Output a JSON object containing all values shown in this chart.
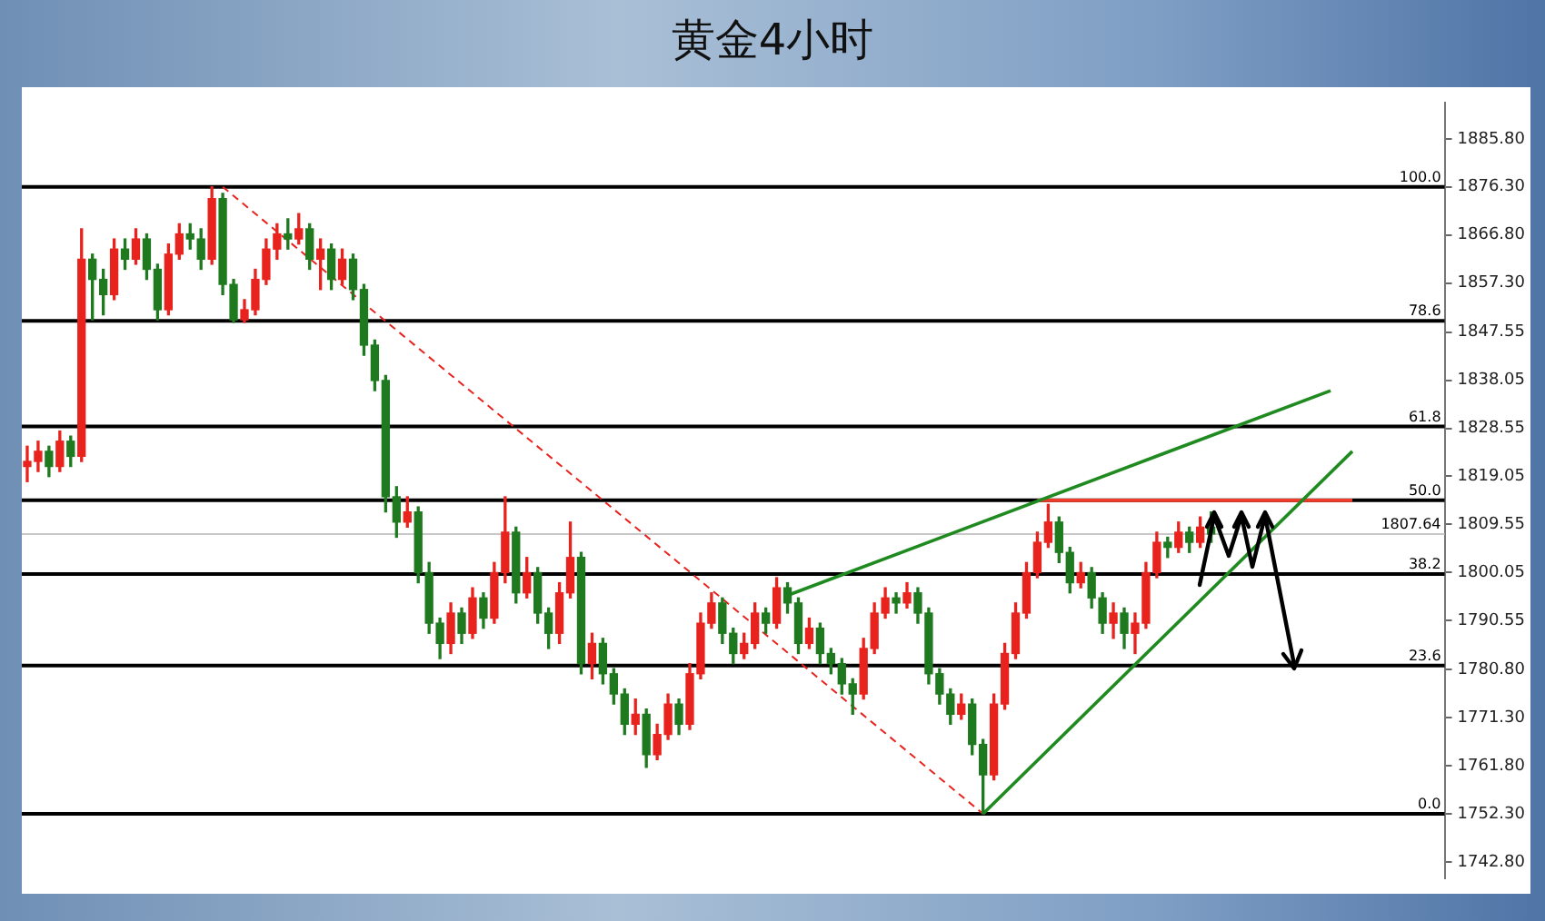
{
  "chart_data": {
    "type": "candlestick",
    "title": "黄金4小时",
    "categories": [
      null,
      null,
      null,
      null,
      null,
      null,
      null,
      null,
      null,
      null,
      null,
      null,
      null,
      null,
      null,
      null,
      null,
      null,
      null,
      null,
      null,
      null,
      null,
      null,
      null,
      null,
      null,
      null,
      null,
      null,
      null,
      null,
      null,
      null,
      null,
      null,
      null,
      null,
      null,
      null,
      null,
      null,
      null,
      null,
      null,
      null,
      null,
      null,
      null,
      null,
      null,
      null,
      null,
      null,
      null,
      null,
      null,
      null,
      null,
      null,
      null,
      null,
      null,
      null,
      null,
      null,
      null,
      null,
      null,
      null,
      null,
      null,
      null,
      null,
      null,
      null,
      null,
      null,
      null,
      null,
      null,
      null,
      null,
      null,
      null,
      null,
      null,
      null,
      null,
      null,
      null,
      null,
      null,
      null,
      null,
      null,
      null,
      null,
      null,
      null,
      null,
      null,
      null,
      null,
      null,
      null,
      null,
      null,
      null,
      null,
      null,
      null,
      null,
      null,
      null,
      null,
      null,
      null,
      null,
      null,
      null,
      null,
      null,
      null,
      null,
      null,
      null,
      null,
      null,
      null,
      null
    ],
    "ohlc": [
      [
        1821,
        1825,
        1818,
        1822
      ],
      [
        1822,
        1826,
        1820,
        1824
      ],
      [
        1824,
        1825,
        1819,
        1821
      ],
      [
        1821,
        1828,
        1820,
        1826
      ],
      [
        1826,
        1827,
        1821,
        1823
      ],
      [
        1823,
        1868,
        1822,
        1862
      ],
      [
        1862,
        1863,
        1850,
        1858
      ],
      [
        1858,
        1860,
        1851,
        1855
      ],
      [
        1855,
        1866,
        1854,
        1864
      ],
      [
        1864,
        1866,
        1860,
        1862
      ],
      [
        1862,
        1868,
        1861,
        1866
      ],
      [
        1866,
        1867,
        1858,
        1860
      ],
      [
        1860,
        1861,
        1850,
        1852
      ],
      [
        1852,
        1865,
        1851,
        1863
      ],
      [
        1863,
        1869,
        1862,
        1867
      ],
      [
        1867,
        1869,
        1864,
        1866
      ],
      [
        1866,
        1868,
        1860,
        1862
      ],
      [
        1862,
        1876.3,
        1861,
        1874
      ],
      [
        1874,
        1875,
        1855,
        1857
      ],
      [
        1857,
        1858,
        1849.5,
        1850
      ],
      [
        1850,
        1854,
        1849.5,
        1852
      ],
      [
        1852,
        1860,
        1851,
        1858
      ],
      [
        1858,
        1866,
        1857,
        1864
      ],
      [
        1864,
        1869,
        1862,
        1867
      ],
      [
        1867,
        1870,
        1864,
        1866
      ],
      [
        1866,
        1871,
        1865,
        1868
      ],
      [
        1868,
        1869,
        1860,
        1862
      ],
      [
        1862,
        1866,
        1856,
        1864
      ],
      [
        1864,
        1865,
        1856,
        1858
      ],
      [
        1858,
        1864,
        1857,
        1862
      ],
      [
        1862,
        1863,
        1854,
        1856
      ],
      [
        1856,
        1857,
        1843,
        1845
      ],
      [
        1845,
        1846,
        1836,
        1838
      ],
      [
        1838,
        1839,
        1812,
        1815
      ],
      [
        1815,
        1817,
        1807,
        1810
      ],
      [
        1810,
        1815,
        1809,
        1812
      ],
      [
        1812,
        1813,
        1798,
        1800
      ],
      [
        1800,
        1802,
        1788,
        1790
      ],
      [
        1790,
        1791,
        1783,
        1786
      ],
      [
        1786,
        1794,
        1784,
        1792
      ],
      [
        1792,
        1793,
        1786,
        1788
      ],
      [
        1788,
        1797,
        1787,
        1795
      ],
      [
        1795,
        1796,
        1789,
        1791
      ],
      [
        1791,
        1802,
        1790,
        1800
      ],
      [
        1800,
        1815,
        1798,
        1808
      ],
      [
        1808,
        1809,
        1794,
        1796
      ],
      [
        1796,
        1803,
        1795,
        1800
      ],
      [
        1800,
        1801,
        1790,
        1792
      ],
      [
        1792,
        1793,
        1785,
        1788
      ],
      [
        1788,
        1798,
        1786,
        1796
      ],
      [
        1796,
        1810,
        1795,
        1803
      ],
      [
        1803,
        1804,
        1780,
        1782
      ],
      [
        1782,
        1788,
        1779,
        1786
      ],
      [
        1786,
        1787,
        1778,
        1780
      ],
      [
        1780,
        1781,
        1774,
        1776
      ],
      [
        1776,
        1777,
        1768,
        1770
      ],
      [
        1770,
        1775,
        1768,
        1772
      ],
      [
        1772,
        1773,
        1761.5,
        1764
      ],
      [
        1764,
        1770,
        1763,
        1768
      ],
      [
        1768,
        1776,
        1767,
        1774
      ],
      [
        1774,
        1775,
        1768,
        1770
      ],
      [
        1770,
        1782,
        1769,
        1780
      ],
      [
        1780,
        1792,
        1779,
        1790
      ],
      [
        1790,
        1796,
        1789,
        1794
      ],
      [
        1794,
        1795,
        1786,
        1788
      ],
      [
        1788,
        1789,
        1782,
        1784
      ],
      [
        1784,
        1788,
        1783,
        1786
      ],
      [
        1786,
        1794,
        1785,
        1792
      ],
      [
        1792,
        1793,
        1788,
        1790
      ],
      [
        1790,
        1799,
        1789,
        1797
      ],
      [
        1797,
        1798,
        1792,
        1794
      ],
      [
        1794,
        1795,
        1784,
        1786
      ],
      [
        1786,
        1791,
        1785,
        1789
      ],
      [
        1789,
        1790,
        1782,
        1784
      ],
      [
        1784,
        1785,
        1780,
        1782
      ],
      [
        1782,
        1783,
        1776,
        1778
      ],
      [
        1778,
        1779,
        1772,
        1776
      ],
      [
        1776,
        1787,
        1775,
        1785
      ],
      [
        1785,
        1794,
        1784,
        1792
      ],
      [
        1792,
        1797,
        1791,
        1795
      ],
      [
        1795,
        1796,
        1792,
        1794
      ],
      [
        1794,
        1798,
        1793,
        1796
      ],
      [
        1796,
        1797,
        1790,
        1792
      ],
      [
        1792,
        1793,
        1778,
        1780
      ],
      [
        1780,
        1781,
        1774,
        1776
      ],
      [
        1776,
        1777,
        1770,
        1772
      ],
      [
        1772,
        1776,
        1771,
        1774
      ],
      [
        1774,
        1775,
        1764,
        1766
      ],
      [
        1766,
        1767,
        1752.3,
        1760
      ],
      [
        1760,
        1776,
        1759,
        1774
      ],
      [
        1774,
        1786,
        1773,
        1784
      ],
      [
        1784,
        1794,
        1783,
        1792
      ],
      [
        1792,
        1802,
        1791,
        1800
      ],
      [
        1800,
        1808,
        1799,
        1806
      ],
      [
        1806,
        1813.5,
        1805,
        1810
      ],
      [
        1810,
        1811,
        1802,
        1804
      ],
      [
        1804,
        1805,
        1796,
        1798
      ],
      [
        1798,
        1802,
        1797,
        1800
      ],
      [
        1800,
        1801,
        1793,
        1795
      ],
      [
        1795,
        1796,
        1788,
        1790
      ],
      [
        1790,
        1794,
        1787,
        1792
      ],
      [
        1792,
        1793,
        1785,
        1788
      ],
      [
        1788,
        1792,
        1784,
        1790
      ],
      [
        1790,
        1802,
        1789,
        1800
      ],
      [
        1800,
        1808,
        1799,
        1806
      ],
      [
        1806,
        1807,
        1803,
        1805
      ],
      [
        1805,
        1810,
        1804,
        1808
      ],
      [
        1808,
        1809,
        1804,
        1806
      ],
      [
        1806,
        1811,
        1805,
        1809
      ],
      [
        1809,
        1812,
        1806,
        1807.64
      ],
      null,
      null,
      null,
      null,
      null,
      null,
      null,
      null,
      null,
      null,
      null,
      null,
      null,
      null,
      null,
      null,
      null,
      null,
      null,
      null,
      null
    ],
    "colors": [
      "#e8231e",
      "#e8231e",
      "#1f7a1f",
      "#e8231e",
      "#1f7a1f",
      "#e8231e",
      "#1f7a1f",
      "#1f7a1f",
      "#e8231e",
      "#1f7a1f",
      "#e8231e",
      "#1f7a1f",
      "#1f7a1f",
      "#e8231e",
      "#e8231e",
      "#1f7a1f",
      "#1f7a1f",
      "#e8231e",
      "#1f7a1f",
      "#1f7a1f",
      "#e8231e",
      "#e8231e",
      "#e8231e",
      "#e8231e",
      "#1f7a1f",
      "#e8231e",
      "#1f7a1f",
      "#e8231e",
      "#1f7a1f",
      "#e8231e",
      "#1f7a1f",
      "#1f7a1f",
      "#1f7a1f",
      "#1f7a1f",
      "#1f7a1f",
      "#e8231e",
      "#1f7a1f",
      "#1f7a1f",
      "#1f7a1f",
      "#e8231e",
      "#1f7a1f",
      "#e8231e",
      "#1f7a1f",
      "#e8231e",
      "#e8231e",
      "#1f7a1f",
      "#e8231e",
      "#1f7a1f",
      "#1f7a1f",
      "#e8231e",
      "#e8231e",
      "#1f7a1f",
      "#e8231e",
      "#1f7a1f",
      "#1f7a1f",
      "#1f7a1f",
      "#e8231e",
      "#1f7a1f",
      "#e8231e",
      "#e8231e",
      "#1f7a1f",
      "#e8231e",
      "#e8231e",
      "#e8231e",
      "#1f7a1f",
      "#1f7a1f",
      "#e8231e",
      "#e8231e",
      "#1f7a1f",
      "#e8231e",
      "#1f7a1f",
      "#1f7a1f",
      "#e8231e",
      "#1f7a1f",
      "#1f7a1f",
      "#1f7a1f",
      "#1f7a1f",
      "#e8231e",
      "#e8231e",
      "#e8231e",
      "#1f7a1f",
      "#e8231e",
      "#1f7a1f",
      "#1f7a1f",
      "#1f7a1f",
      "#1f7a1f",
      "#e8231e",
      "#1f7a1f",
      "#1f7a1f",
      "#e8231e",
      "#e8231e",
      "#e8231e",
      "#e8231e",
      "#e8231e",
      "#e8231e",
      "#1f7a1f",
      "#1f7a1f",
      "#e8231e",
      "#1f7a1f",
      "#1f7a1f",
      "#e8231e",
      "#1f7a1f",
      "#e8231e",
      "#e8231e",
      "#e8231e",
      "#1f7a1f",
      "#e8231e",
      "#1f7a1f",
      "#e8231e",
      "#1f7a1f",
      null,
      null,
      null,
      null,
      null,
      null,
      null,
      null,
      null,
      null,
      null,
      null,
      null,
      null,
      null,
      null,
      null,
      null,
      null,
      null,
      null
    ],
    "series": [
      {
        "type": "line",
        "color": "#1f8a1f",
        "line_style": "solid",
        "values": [
          null,
          null,
          null,
          null,
          null,
          null,
          null,
          null,
          null,
          null,
          null,
          null,
          null,
          null,
          null,
          null,
          null,
          null,
          null,
          null,
          null,
          null,
          null,
          null,
          null,
          null,
          null,
          null,
          null,
          null,
          null,
          null,
          null,
          null,
          null,
          null,
          null,
          null,
          null,
          null,
          null,
          null,
          null,
          null,
          null,
          null,
          null,
          null,
          null,
          null,
          null,
          null,
          null,
          null,
          null,
          null,
          null,
          null,
          null,
          null,
          null,
          null,
          null,
          null,
          null,
          null,
          null,
          null,
          null,
          null,
          1795.5,
          null,
          null,
          null,
          null,
          null,
          null,
          null,
          null,
          null,
          null,
          null,
          null,
          null,
          null,
          null,
          null,
          null,
          null,
          null,
          null,
          null,
          null,
          null,
          null,
          null,
          null,
          null,
          null,
          null,
          null,
          null,
          null,
          null,
          null,
          null,
          null,
          null,
          null,
          null,
          null,
          null,
          null,
          null,
          null,
          null,
          null,
          null,
          null,
          null,
          1836,
          null,
          null,
          null,
          null,
          null,
          null,
          null,
          null,
          null,
          null
        ]
      },
      {
        "type": "line",
        "color": "#1f8a1f",
        "line_style": "solid",
        "values": [
          null,
          null,
          null,
          null,
          null,
          null,
          null,
          null,
          null,
          null,
          null,
          null,
          null,
          null,
          null,
          null,
          null,
          null,
          null,
          null,
          null,
          null,
          null,
          null,
          null,
          null,
          null,
          null,
          null,
          null,
          null,
          null,
          null,
          null,
          null,
          null,
          null,
          null,
          null,
          null,
          null,
          null,
          null,
          null,
          null,
          null,
          null,
          null,
          null,
          null,
          null,
          null,
          null,
          null,
          null,
          null,
          null,
          null,
          null,
          null,
          null,
          null,
          null,
          null,
          null,
          null,
          null,
          null,
          null,
          null,
          null,
          null,
          null,
          null,
          null,
          null,
          null,
          null,
          null,
          null,
          null,
          null,
          null,
          null,
          null,
          null,
          null,
          null,
          1752.3,
          null,
          null,
          null,
          null,
          null,
          null,
          null,
          null,
          null,
          null,
          null,
          null,
          null,
          null,
          null,
          null,
          null,
          null,
          null,
          null,
          null,
          null,
          null,
          null,
          null,
          null,
          null,
          null,
          null,
          null,
          null,
          null,
          null,
          1824,
          null,
          null,
          null,
          null,
          null,
          null,
          null,
          null
        ]
      },
      {
        "type": "line",
        "color": "#e8231e",
        "line_style": "dashed",
        "values": [
          null,
          null,
          null,
          null,
          null,
          null,
          null,
          null,
          null,
          null,
          null,
          null,
          null,
          null,
          null,
          null,
          null,
          null,
          1876.3,
          null,
          null,
          null,
          null,
          null,
          null,
          null,
          null,
          null,
          null,
          null,
          null,
          null,
          null,
          null,
          null,
          null,
          null,
          null,
          null,
          null,
          null,
          null,
          null,
          null,
          null,
          null,
          null,
          null,
          null,
          null,
          null,
          null,
          null,
          null,
          null,
          null,
          null,
          null,
          null,
          null,
          null,
          null,
          null,
          null,
          null,
          null,
          null,
          null,
          null,
          null,
          null,
          null,
          null,
          null,
          null,
          null,
          null,
          null,
          null,
          null,
          null,
          null,
          null,
          null,
          null,
          null,
          null,
          null,
          1752.3,
          null,
          null,
          null,
          null,
          null,
          null,
          null,
          null,
          null,
          null,
          null,
          null,
          null,
          null,
          null,
          null,
          null,
          null,
          null,
          null,
          null,
          null,
          null,
          null,
          null,
          null,
          null,
          null,
          null,
          null,
          null,
          null,
          null,
          null,
          null,
          null,
          null,
          null,
          null,
          null,
          null,
          null
        ]
      },
      {
        "type": "line",
        "color": "#f03a2a",
        "line_style": "solid",
        "values": [
          null,
          null,
          null,
          null,
          null,
          null,
          null,
          null,
          null,
          null,
          null,
          null,
          null,
          null,
          null,
          null,
          null,
          null,
          null,
          null,
          null,
          null,
          null,
          null,
          null,
          null,
          null,
          null,
          null,
          null,
          null,
          null,
          null,
          null,
          null,
          null,
          null,
          null,
          null,
          null,
          null,
          null,
          null,
          null,
          null,
          null,
          null,
          null,
          null,
          null,
          null,
          null,
          null,
          null,
          null,
          null,
          null,
          null,
          null,
          null,
          null,
          null,
          null,
          null,
          null,
          null,
          null,
          null,
          null,
          null,
          null,
          null,
          null,
          null,
          null,
          null,
          null,
          null,
          null,
          null,
          null,
          null,
          null,
          null,
          null,
          null,
          null,
          null,
          null,
          null,
          null,
          null,
          null,
          1814.3,
          null,
          null,
          null,
          null,
          null,
          null,
          null,
          null,
          null,
          null,
          null,
          null,
          null,
          null,
          null,
          null,
          null,
          null,
          null,
          null,
          null,
          null,
          null,
          null,
          null,
          null,
          null,
          null,
          1814.3,
          null,
          null,
          null,
          null,
          null,
          null,
          null,
          null
        ]
      }
    ],
    "ylim": [
      1739.5,
      1893
    ],
    "yticks": [
      {
        "value": 1742.8,
        "label": "1742.80"
      },
      {
        "value": 1752.3,
        "label": "1752.30"
      },
      {
        "value": 1761.8,
        "label": "1761.80"
      },
      {
        "value": 1771.3,
        "label": "1771.30"
      },
      {
        "value": 1780.8,
        "label": "1780.80"
      },
      {
        "value": 1790.55,
        "label": "1790.55"
      },
      {
        "value": 1800.05,
        "label": "1800.05"
      },
      {
        "value": 1809.55,
        "label": "1809.55"
      },
      {
        "value": 1819.05,
        "label": "1819.05"
      },
      {
        "value": 1828.55,
        "label": "1828.55"
      },
      {
        "value": 1838.05,
        "label": "1838.05"
      },
      {
        "value": 1847.55,
        "label": "1847.55"
      },
      {
        "value": 1857.3,
        "label": "1857.30"
      },
      {
        "value": 1866.8,
        "label": "1866.80"
      },
      {
        "value": 1876.3,
        "label": "1876.30"
      },
      {
        "value": 1885.8,
        "label": "1885.80"
      }
    ],
    "ref_lines": [
      {
        "axis": "y",
        "value": 1876.3,
        "color": "#000000"
      },
      {
        "axis": "y",
        "value": 1849.8,
        "color": "#000000"
      },
      {
        "axis": "y",
        "value": 1828.9,
        "color": "#000000"
      },
      {
        "axis": "y",
        "value": 1814.3,
        "color": "#000000"
      },
      {
        "axis": "y",
        "value": 1807.64,
        "label": "1807.64",
        "color": "#c8c8c8"
      },
      {
        "axis": "y",
        "value": 1799.7,
        "color": "#000000"
      },
      {
        "axis": "y",
        "value": 1781.6,
        "color": "#000000"
      },
      {
        "axis": "y",
        "value": 1752.3,
        "color": "#000000"
      }
    ],
    "annotations": [
      {
        "text": "100.0",
        "y": 1876.3
      },
      {
        "text": "78.6",
        "y": 1849.8
      },
      {
        "text": "61.8",
        "y": 1828.9
      },
      {
        "text": "50.0",
        "y": 1814.3
      },
      {
        "text": "38.2",
        "y": 1799.7
      },
      {
        "text": "23.6",
        "y": 1781.6
      },
      {
        "text": "0.0",
        "y": 1752.3
      }
    ],
    "tick_labels": "y",
    "grid": false,
    "legend": false
  }
}
